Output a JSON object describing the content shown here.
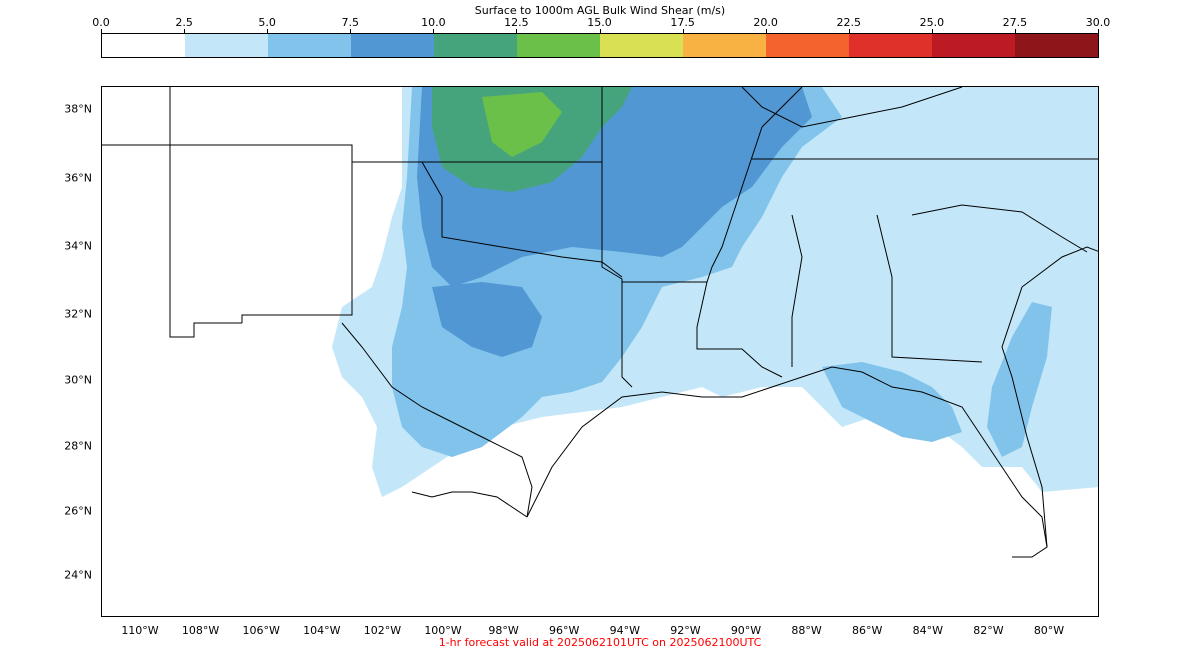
{
  "title": "Surface to 1000m AGL Bulk Wind Shear (m/s)",
  "footer": "1-hr forecast valid at 2025062101UTC on 2025062100UTC",
  "colorbar": {
    "ticks": [
      "0.0",
      "2.5",
      "5.0",
      "7.5",
      "10.0",
      "12.5",
      "15.0",
      "17.5",
      "20.0",
      "22.5",
      "25.0",
      "27.5",
      "30.0"
    ],
    "colors": [
      "#ffffff",
      "#c3e7f9",
      "#82c3ec",
      "#5097d3",
      "#46a47c",
      "#6bc049",
      "#d9e054",
      "#f8b244",
      "#f3632d",
      "#df3129",
      "#bd1b24",
      "#8e1519"
    ]
  },
  "lat_labels": [
    "38°N",
    "36°N",
    "34°N",
    "32°N",
    "30°N",
    "28°N",
    "26°N",
    "24°N"
  ],
  "lon_labels": [
    "110°W",
    "108°W",
    "106°W",
    "104°W",
    "102°W",
    "100°W",
    "98°W",
    "96°W",
    "94°W",
    "92°W",
    "90°W",
    "88°W",
    "86°W",
    "84°W",
    "82°W",
    "80°W"
  ]
}
